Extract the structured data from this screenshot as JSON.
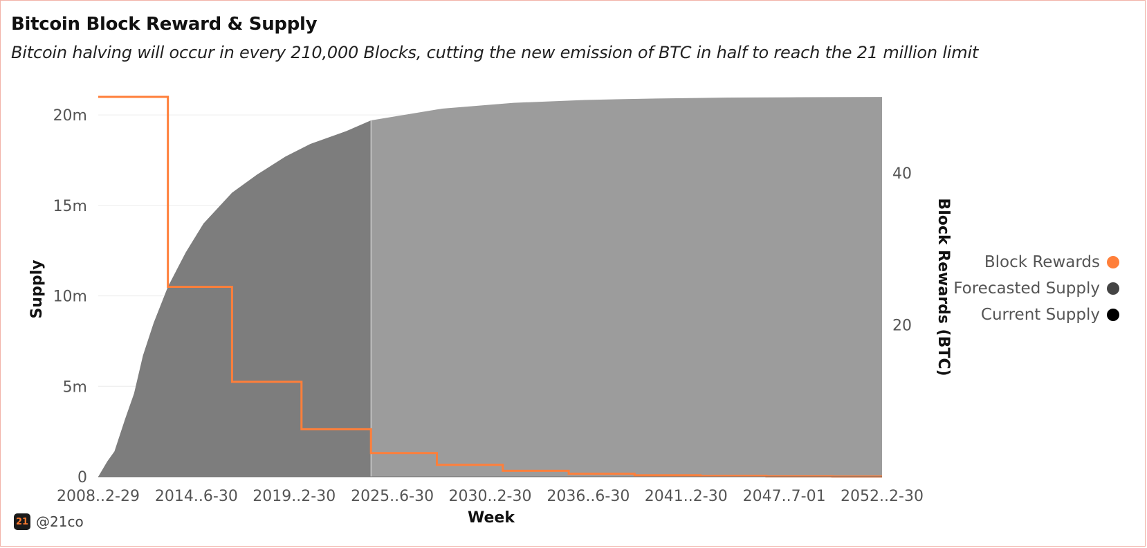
{
  "title": "Bitcoin Block Reward & Supply",
  "subtitle": "Bitcoin halving will occur in every 210,000 Blocks, cutting the new emission of BTC in half to reach the 21 million limit",
  "brand": {
    "handle": "@21co",
    "logo_text": "21"
  },
  "colors": {
    "block_rewards": "#ff7f3a",
    "forecasted_supply": "#9c9c9c",
    "current_supply": "#7d7d7d",
    "legend_forecasted": "#444444",
    "legend_current": "#000000"
  },
  "chart_data": {
    "type": "area",
    "xlabel": "Week",
    "ylabel_left": "Supply",
    "ylabel_right": "Block Rewards (BTC)",
    "x_range": [
      2008.99,
      2052.99
    ],
    "x_ticks": [
      {
        "x": 2008.99,
        "label": "2008..2-29"
      },
      {
        "x": 2014.5,
        "label": "2014..6-30"
      },
      {
        "x": 2019.99,
        "label": "2019..2-30"
      },
      {
        "x": 2025.5,
        "label": "2025..6-30"
      },
      {
        "x": 2030.99,
        "label": "2030..2-30"
      },
      {
        "x": 2036.5,
        "label": "2036..6-30"
      },
      {
        "x": 2041.99,
        "label": "2041..2-30"
      },
      {
        "x": 2047.5,
        "label": "2047..7-01"
      },
      {
        "x": 2052.99,
        "label": "2052..2-30"
      }
    ],
    "left_axis": {
      "range": [
        0,
        21000000
      ],
      "ticks": [
        {
          "v": 0,
          "label": "0"
        },
        {
          "v": 5000000,
          "label": "5m"
        },
        {
          "v": 10000000,
          "label": "10m"
        },
        {
          "v": 15000000,
          "label": "15m"
        },
        {
          "v": 20000000,
          "label": "20m"
        }
      ]
    },
    "right_axis": {
      "range": [
        0,
        50
      ],
      "ticks": [
        {
          "v": 20,
          "label": "20"
        },
        {
          "v": 40,
          "label": "40"
        }
      ]
    },
    "current_cutoff_x": 2024.3,
    "series": [
      {
        "name": "Current Supply",
        "axis": "left",
        "points": [
          [
            2008.99,
            0
          ],
          [
            2009.5,
            850000
          ],
          [
            2009.9,
            1400000
          ],
          [
            2010.5,
            3200000
          ],
          [
            2011.0,
            4600000
          ],
          [
            2011.5,
            6700000
          ],
          [
            2012.1,
            8500000
          ],
          [
            2012.9,
            10500000
          ],
          [
            2013.9,
            12400000
          ],
          [
            2014.9,
            14000000
          ],
          [
            2016.5,
            15700000
          ],
          [
            2017.9,
            16700000
          ],
          [
            2019.5,
            17700000
          ],
          [
            2020.9,
            18400000
          ],
          [
            2022.9,
            19100000
          ],
          [
            2024.3,
            19700000
          ]
        ]
      },
      {
        "name": "Forecasted Supply",
        "axis": "left",
        "points": [
          [
            2024.3,
            19700000
          ],
          [
            2028.3,
            20350000
          ],
          [
            2032.3,
            20670000
          ],
          [
            2036.3,
            20830000
          ],
          [
            2040.3,
            20910000
          ],
          [
            2044.3,
            20960000
          ],
          [
            2048.3,
            20980000
          ],
          [
            2052.99,
            20995000
          ]
        ]
      },
      {
        "name": "Block Rewards",
        "axis": "right",
        "steps": [
          {
            "from": 2008.99,
            "value": 50
          },
          {
            "from": 2012.9,
            "value": 25
          },
          {
            "from": 2016.5,
            "value": 12.5
          },
          {
            "from": 2020.4,
            "value": 6.25
          },
          {
            "from": 2024.3,
            "value": 3.125
          },
          {
            "from": 2028.0,
            "value": 1.5625
          },
          {
            "from": 2031.7,
            "value": 0.78125
          },
          {
            "from": 2035.4,
            "value": 0.390625
          },
          {
            "from": 2039.1,
            "value": 0.1953125
          },
          {
            "from": 2042.8,
            "value": 0.09765625
          },
          {
            "from": 2046.5,
            "value": 0.048828125
          },
          {
            "from": 2050.2,
            "value": 0.0244140625
          }
        ],
        "end_x": 2052.99
      }
    ],
    "legend": {
      "placement": "right",
      "items": [
        "Block Rewards",
        "Forecasted Supply",
        "Current Supply"
      ]
    }
  }
}
